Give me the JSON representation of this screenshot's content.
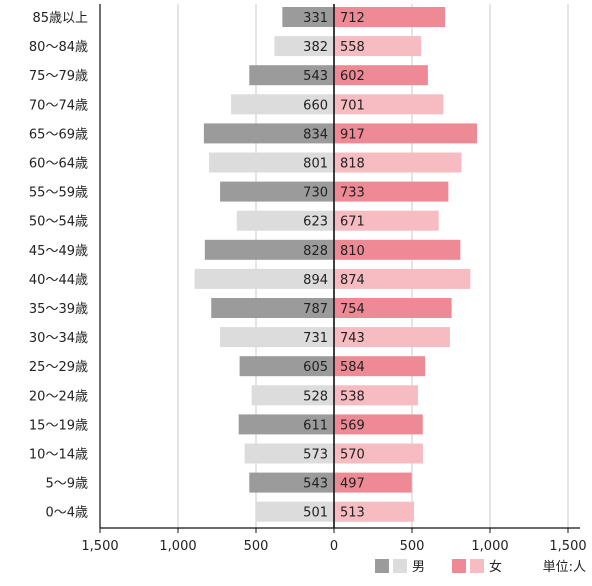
{
  "chart_data": {
    "type": "bar",
    "orientation": "horizontal-pyramid",
    "categories": [
      "85歳以上",
      "80～84歳",
      "75～79歳",
      "70～74歳",
      "65～69歳",
      "60～64歳",
      "55～59歳",
      "50～54歳",
      "45～49歳",
      "40～44歳",
      "35～39歳",
      "30～34歳",
      "25～29歳",
      "20～24歳",
      "15～19歳",
      "10～14歳",
      "5～9歳",
      "0～4歳"
    ],
    "series": [
      {
        "name": "男",
        "side": "left",
        "colors": [
          "#9b9b9b",
          "#dcdcdc"
        ],
        "values": [
          331,
          382,
          543,
          660,
          834,
          801,
          730,
          623,
          828,
          894,
          787,
          731,
          605,
          528,
          611,
          573,
          543,
          501
        ]
      },
      {
        "name": "女",
        "side": "right",
        "colors": [
          "#ee8a95",
          "#f6bcc1"
        ],
        "values": [
          712,
          558,
          602,
          701,
          917,
          818,
          733,
          671,
          810,
          874,
          754,
          743,
          584,
          538,
          569,
          570,
          497,
          513
        ]
      }
    ],
    "x_ticks": [
      {
        "value": -1500,
        "label": "1,500"
      },
      {
        "value": -1000,
        "label": "1,000"
      },
      {
        "value": -500,
        "label": "500"
      },
      {
        "value": 0,
        "label": "0"
      },
      {
        "value": 500,
        "label": "500"
      },
      {
        "value": 1000,
        "label": "1,000"
      },
      {
        "value": 1500,
        "label": "1,500"
      }
    ],
    "xlim": [
      -1500,
      1500
    ],
    "grid": true,
    "legend_position": "bottom-right",
    "unit_label": "単位:人"
  }
}
